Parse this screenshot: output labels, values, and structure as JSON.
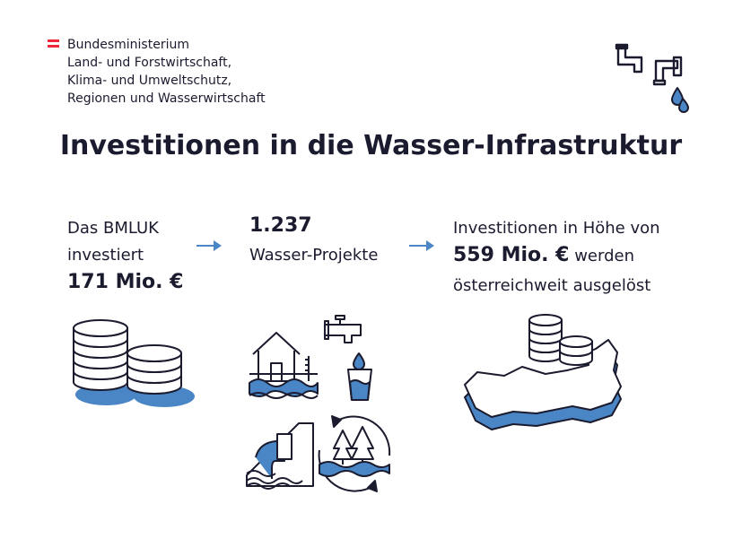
{
  "ministry": {
    "lines": [
      "Bundesministerium",
      "Land- und Forstwirtschaft,",
      "Klima- und Umweltschutz,",
      "Regionen und Wasserwirtschaft"
    ],
    "flag_colors": [
      "#ed2939",
      "#ffffff",
      "#ed2939"
    ]
  },
  "title": "Investitionen in die Wasser-Infrastruktur",
  "col1": {
    "line1": "Das BMLUK",
    "line2": "investiert",
    "amount": "171 Mio. €"
  },
  "col2": {
    "count": "1.237",
    "label": "Wasser-Projekte"
  },
  "col3": {
    "line1": "Investitionen in Höhe von",
    "amount": "559 Mio. €",
    "line2_rest": " werden",
    "line3": "österreichweit ausgelöst"
  },
  "colors": {
    "accent": "#4a86c5",
    "ink": "#1b1b2f"
  },
  "icons": [
    "faucet-pipes-icon",
    "coin-stack-icon",
    "arrow-right-icon",
    "flood-house-icon",
    "tap-water-glass-icon",
    "wastewater-pipe-icon",
    "forest-water-cycle-icon",
    "austria-map-icon"
  ]
}
